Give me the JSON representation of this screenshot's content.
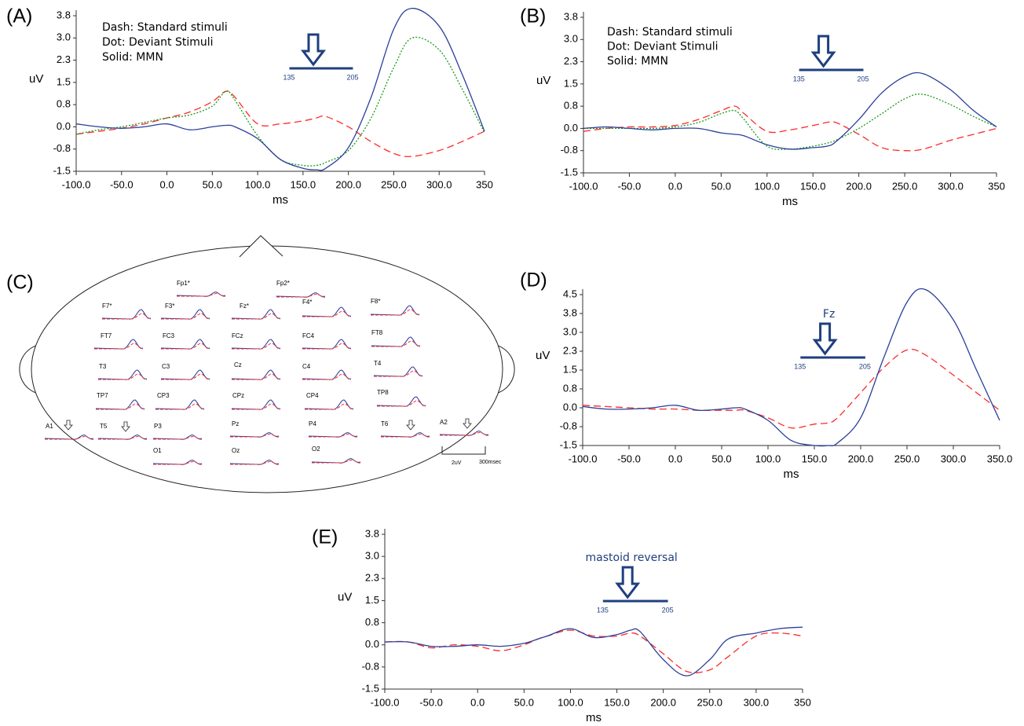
{
  "chart_data": [
    {
      "type": "line",
      "label": "(A)",
      "x_label": "ms",
      "y_label": "uV",
      "x": [
        -100,
        -75,
        -50,
        -25,
        0,
        25,
        50,
        65,
        75,
        100,
        125,
        150,
        165,
        175,
        200,
        225,
        250,
        270,
        300,
        325,
        350
      ],
      "series": [
        {
          "name": "Dash: Standard stimuli",
          "color": "#ff2a2a",
          "style": "dashed",
          "values": [
            -0.25,
            -0.15,
            -0.05,
            0.1,
            0.3,
            0.5,
            0.85,
            1.2,
            1.0,
            0.1,
            0.1,
            0.2,
            0.3,
            0.35,
            0.0,
            -0.5,
            -0.9,
            -1.0,
            -0.8,
            -0.5,
            -0.15
          ]
        },
        {
          "name": "Dot: Deviant Stimuli",
          "color": "#1a9a1a",
          "style": "dotted",
          "values": [
            -0.25,
            -0.1,
            0.0,
            0.15,
            0.3,
            0.4,
            0.7,
            1.2,
            0.9,
            -0.3,
            -1.1,
            -1.3,
            -1.3,
            -1.2,
            -0.8,
            0.3,
            2.0,
            3.0,
            2.6,
            1.3,
            -0.2
          ]
        },
        {
          "name": "Solid: MMN",
          "color": "#2b3f9a",
          "style": "solid",
          "values": [
            0.1,
            0.0,
            -0.05,
            0.0,
            0.1,
            -0.1,
            0.0,
            0.05,
            0.0,
            -0.4,
            -1.1,
            -1.4,
            -1.45,
            -1.4,
            -0.7,
            1.0,
            3.3,
            4.0,
            3.4,
            1.8,
            -0.15
          ]
        }
      ],
      "xlim": [
        -100,
        350
      ],
      "xticks": [
        {
          "value": -100,
          "label": "-100.0"
        },
        {
          "value": -50,
          "label": "-50.0"
        },
        {
          "value": 0,
          "label": "0.0"
        },
        {
          "value": 50,
          "label": "50.0"
        },
        {
          "value": 100,
          "label": "100.0"
        },
        {
          "value": 150,
          "label": "150.0"
        },
        {
          "value": 200,
          "label": "200.0"
        },
        {
          "value": 250,
          "label": "250.0"
        },
        {
          "value": 300,
          "label": "300.0"
        },
        350
      ],
      "ylim": [
        -1.5,
        3.75
      ],
      "yticks": [
        -1.5,
        {
          "value": -0.75,
          "label": "-0.8"
        },
        {
          "value": 0,
          "label": "0.0"
        },
        {
          "value": 0.75,
          "label": "0.8"
        },
        1.5,
        {
          "value": 2.25,
          "label": "2.3"
        },
        {
          "value": 3,
          "label": "3.0"
        },
        {
          "value": 3.75,
          "label": "3.8"
        }
      ],
      "bracket": [
        135,
        205
      ]
    },
    {
      "type": "line",
      "label": "(B)",
      "x_label": "ms",
      "y_label": "uV",
      "x": [
        -100,
        -75,
        -50,
        -25,
        0,
        25,
        50,
        65,
        75,
        100,
        125,
        150,
        165,
        175,
        200,
        225,
        250,
        270,
        300,
        325,
        350
      ],
      "series": [
        {
          "name": "Dash: Standard stimuli",
          "color": "#ff2a2a",
          "style": "dashed",
          "values": [
            -0.1,
            0.0,
            0.05,
            0.05,
            0.1,
            0.3,
            0.6,
            0.75,
            0.5,
            -0.1,
            -0.05,
            0.1,
            0.2,
            0.2,
            -0.2,
            -0.65,
            -0.75,
            -0.7,
            -0.4,
            -0.2,
            0.0
          ]
        },
        {
          "name": "Dot: Deviant Stimuli",
          "color": "#1a9a1a",
          "style": "dotted",
          "values": [
            0.0,
            0.0,
            0.0,
            0.0,
            0.05,
            0.2,
            0.5,
            0.6,
            0.3,
            -0.6,
            -0.7,
            -0.6,
            -0.5,
            -0.4,
            0.0,
            0.5,
            1.0,
            1.15,
            0.8,
            0.4,
            0.05
          ]
        },
        {
          "name": "Solid: MMN",
          "color": "#2b3f9a",
          "style": "solid",
          "values": [
            0.0,
            0.05,
            0.0,
            -0.05,
            0.0,
            0.0,
            -0.15,
            -0.2,
            -0.25,
            -0.55,
            -0.7,
            -0.65,
            -0.6,
            -0.45,
            0.3,
            1.2,
            1.75,
            1.85,
            1.3,
            0.6,
            0.05
          ]
        }
      ],
      "xlim": [
        -100,
        350
      ],
      "xticks": [
        {
          "value": -100,
          "label": "-100.0"
        },
        {
          "value": -50,
          "label": "-50.0"
        },
        {
          "value": 0,
          "label": "0.0"
        },
        {
          "value": 50,
          "label": "50.0"
        },
        {
          "value": 100,
          "label": "100.0"
        },
        {
          "value": 150,
          "label": "150.0"
        },
        {
          "value": 200,
          "label": "200.0"
        },
        {
          "value": 250,
          "label": "250.0"
        },
        {
          "value": 300,
          "label": "300.0"
        },
        350
      ],
      "ylim": [
        -1.5,
        3.75
      ],
      "yticks": [
        -1.5,
        {
          "value": -0.75,
          "label": "-0.8"
        },
        {
          "value": 0,
          "label": "0.0"
        },
        {
          "value": 0.75,
          "label": "0.8"
        },
        1.5,
        {
          "value": 2.25,
          "label": "2.3"
        },
        {
          "value": 3,
          "label": "3.0"
        },
        {
          "value": 3.75,
          "label": "3.8"
        }
      ],
      "bracket": [
        135,
        205
      ]
    },
    {
      "type": "line",
      "label": "(D)",
      "x_label": "ms",
      "y_label": "uV",
      "annotation": "Fz",
      "x": [
        -100,
        -75,
        -50,
        -25,
        0,
        25,
        50,
        65,
        75,
        100,
        125,
        150,
        165,
        175,
        200,
        225,
        250,
        270,
        300,
        325,
        350
      ],
      "series": [
        {
          "color": "#ff2a2a",
          "style": "dashed",
          "values": [
            0.1,
            0.05,
            0.0,
            -0.05,
            -0.05,
            -0.1,
            -0.1,
            -0.1,
            -0.1,
            -0.4,
            -0.8,
            -0.65,
            -0.6,
            -0.4,
            0.6,
            1.6,
            2.3,
            2.1,
            1.3,
            0.6,
            -0.1
          ]
        },
        {
          "color": "#2b3f9a",
          "style": "solid",
          "values": [
            0.05,
            -0.05,
            -0.05,
            0.0,
            0.1,
            -0.1,
            -0.05,
            0.0,
            -0.05,
            -0.5,
            -1.3,
            -1.5,
            -1.5,
            -1.4,
            -0.4,
            2.0,
            4.2,
            4.7,
            3.5,
            1.5,
            -0.5
          ]
        }
      ],
      "xlim": [
        -100,
        350
      ],
      "xticks": [
        {
          "value": -100,
          "label": "-100.0"
        },
        {
          "value": -50,
          "label": "-50.0"
        },
        {
          "value": 0,
          "label": "0.0"
        },
        {
          "value": 50,
          "label": "50.0"
        },
        {
          "value": 100,
          "label": "100.0"
        },
        {
          "value": 150,
          "label": "150.0"
        },
        {
          "value": 200,
          "label": "200.0"
        },
        {
          "value": 250,
          "label": "250.0"
        },
        {
          "value": 300,
          "label": "300.0"
        },
        {
          "value": 350,
          "label": "350.0"
        }
      ],
      "ylim": [
        -1.5,
        4.5
      ],
      "yticks": [
        -1.5,
        {
          "value": -0.75,
          "label": "-0.8"
        },
        {
          "value": 0,
          "label": "0.0"
        },
        {
          "value": 0.75,
          "label": "0.8"
        },
        1.5,
        {
          "value": 2.25,
          "label": "2.3"
        },
        {
          "value": 3,
          "label": "3.0"
        },
        {
          "value": 3.75,
          "label": "3.8"
        },
        4.5
      ],
      "bracket": [
        135,
        205
      ]
    },
    {
      "type": "line",
      "label": "(E)",
      "x_label": "ms",
      "y_label": "uV",
      "annotation": "mastoid reversal",
      "x": [
        -100,
        -75,
        -50,
        -25,
        0,
        25,
        50,
        65,
        75,
        100,
        125,
        150,
        165,
        175,
        200,
        225,
        250,
        270,
        300,
        325,
        350
      ],
      "series": [
        {
          "color": "#ff2a2a",
          "style": "dashed",
          "values": [
            0.1,
            0.1,
            -0.1,
            0.0,
            -0.05,
            -0.2,
            0.0,
            0.2,
            0.3,
            0.5,
            0.3,
            0.3,
            0.4,
            0.3,
            -0.3,
            -0.9,
            -0.85,
            -0.4,
            0.3,
            0.4,
            0.3
          ]
        },
        {
          "color": "#2b3f9a",
          "style": "solid",
          "values": [
            0.1,
            0.1,
            -0.05,
            -0.05,
            0.0,
            -0.05,
            0.05,
            0.2,
            0.3,
            0.55,
            0.25,
            0.35,
            0.5,
            0.45,
            -0.5,
            -1.05,
            -0.5,
            0.2,
            0.4,
            0.55,
            0.6
          ]
        }
      ],
      "xlim": [
        -100,
        350
      ],
      "xticks": [
        {
          "value": -100,
          "label": "-100.0"
        },
        {
          "value": -50,
          "label": "-50.0"
        },
        {
          "value": 0,
          "label": "0.0"
        },
        {
          "value": 50,
          "label": "50.0"
        },
        {
          "value": 100,
          "label": "100.0"
        },
        {
          "value": 150,
          "label": "150.0"
        },
        {
          "value": 200,
          "label": "200.0"
        },
        {
          "value": 250,
          "label": "250.0"
        },
        {
          "value": 300,
          "label": "300.0"
        },
        350
      ],
      "ylim": [
        -1.5,
        3.75
      ],
      "yticks": [
        -1.5,
        {
          "value": -0.75,
          "label": "-0.8"
        },
        {
          "value": 0,
          "label": "0.0"
        },
        {
          "value": 0.75,
          "label": "0.8"
        },
        1.5,
        {
          "value": 2.25,
          "label": "2.3"
        },
        {
          "value": 3,
          "label": "3.0"
        },
        {
          "value": 3.75,
          "label": "3.8"
        }
      ],
      "bracket": [
        135,
        205
      ]
    }
  ],
  "head_map": {
    "label": "(C)",
    "electrodes": [
      "Fp1*",
      "Fp2*",
      "F7*",
      "F3*",
      "Fz*",
      "F4*",
      "F8*",
      "FT7",
      "FC3",
      "FCz",
      "FC4",
      "FT8",
      "T3",
      "C3",
      "Cz",
      "C4",
      "T4",
      "TP7",
      "CP3",
      "CPz",
      "CP4",
      "TP8",
      "A1",
      "T5",
      "P3",
      "Pz",
      "P4",
      "T6",
      "A2",
      "O1",
      "Oz",
      "O2"
    ],
    "scale_labels": [
      "2uV",
      "300msec"
    ]
  }
}
